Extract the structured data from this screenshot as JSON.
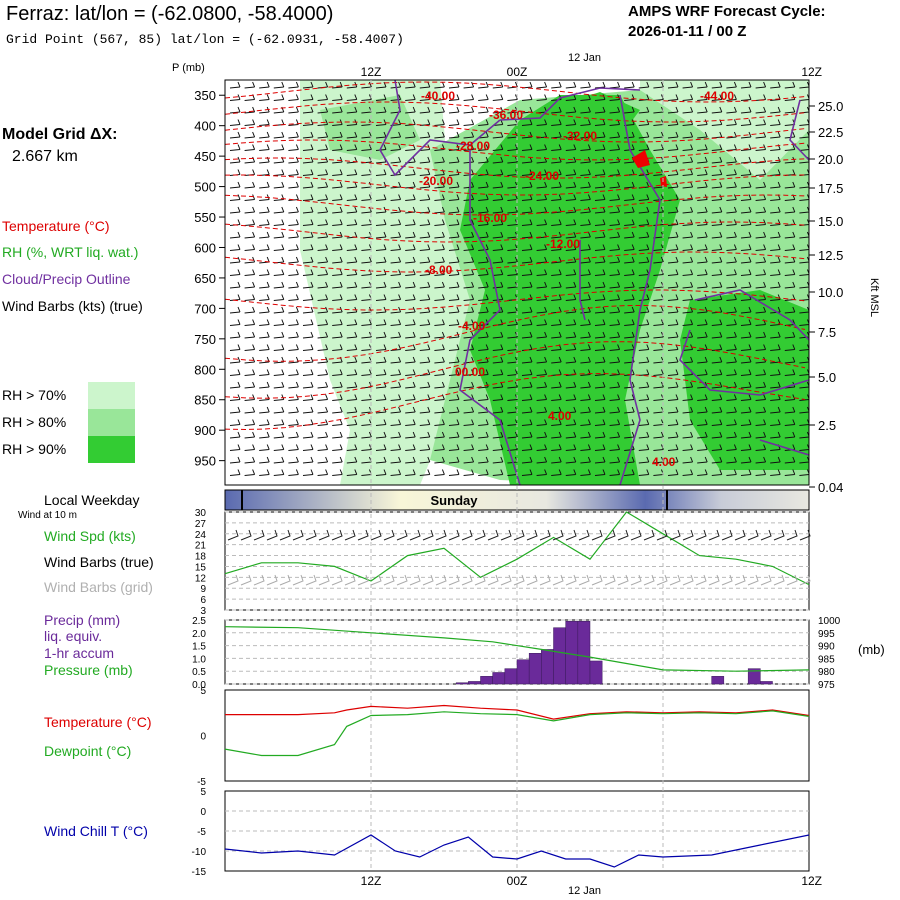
{
  "header": {
    "title": "Ferraz:  lat/lon = (-62.0800, -58.4000)",
    "gridpoint": "Grid Point (567, 85) lat/lon = (-62.0931, -58.4007)",
    "cycle_label": "AMPS WRF Forecast Cycle:",
    "cycle_value": "2026-01-11 / 00  Z"
  },
  "left_legend": {
    "model_grid_label": "Model Grid ΔX:",
    "model_grid_value": "2.667 km",
    "temperature": "Temperature (°C)",
    "rh": "RH (%, WRT liq. wat.)",
    "cloud": "Cloud/Precip Outline",
    "wind": "Wind Barbs (kts) (true)",
    "rh_levels": [
      "RH > 70%",
      "RH > 80%",
      "RH > 90%"
    ],
    "local_weekday": "Local Weekday",
    "wind_10m": "Wind at 10 m",
    "wind_spd": "Wind Spd (kts)",
    "wind_barbs_true": "Wind Barbs (true)",
    "wind_barbs_grid": "Wind Barbs (grid)",
    "precip_lines": [
      "Precip (mm)",
      "liq. equiv.",
      "1-hr accum"
    ],
    "pressure": "Pressure (mb)",
    "temp2": "Temperature (°C)",
    "dewpoint": "Dewpoint (°C)",
    "windchill": "Wind Chill T (°C)"
  },
  "axes": {
    "p_unit": "P (mb)",
    "right_unit": "Kft MSL",
    "mb_unit": "(mb)",
    "date_label": "12 Jan",
    "time_ticks": [
      "12Z",
      "00Z",
      "12Z"
    ],
    "weekday": "Sunday"
  },
  "colors": {
    "temperature": "#dd0000",
    "rh70": "#ccf5cc",
    "rh80": "#99e699",
    "rh90": "#33cc33",
    "cloud": "#7030a0",
    "precip": "#6a2a9a",
    "pressure": "#22aa22",
    "windchill": "#0000aa",
    "band_dark": "#5a6ab0",
    "band_light": "#f8f6d8"
  },
  "chart_data": [
    {
      "type": "heatmap",
      "title": "Time-height cross section",
      "ylabel": "P (mb)",
      "y_ticks_mb": [
        350,
        400,
        450,
        500,
        550,
        600,
        650,
        700,
        750,
        800,
        850,
        900,
        950
      ],
      "y_ticks_kft": [
        "25.0",
        "22.5",
        "20.0",
        "17.5",
        "15.0",
        "12.5",
        "10.0",
        "7.5",
        "5.0",
        "2.5",
        "0.04"
      ],
      "x_ticks": [
        "12Z",
        "00Z",
        "12Z"
      ],
      "temperature_contour_labels": [
        "-40.00",
        "-44.00",
        "-36.00",
        "-32.00",
        "-28.00",
        "-24.00",
        "-20.00",
        "-16.00",
        "-12.00",
        "-8.00",
        "-4.00",
        "00.00",
        "4.00",
        "4.00"
      ]
    },
    {
      "type": "line",
      "title": "Wind Spd (kts)",
      "ylim": [
        3,
        30
      ],
      "y_ticks": [
        3,
        6,
        9,
        12,
        15,
        18,
        21,
        24,
        27,
        30
      ],
      "x_hours": [
        0,
        3,
        6,
        9,
        12,
        15,
        18,
        21,
        24,
        27,
        30,
        33,
        36,
        39,
        42,
        45,
        48
      ],
      "values": [
        13,
        16,
        16,
        15,
        11,
        18,
        20,
        12,
        17,
        23,
        17,
        30,
        24,
        18,
        17,
        15,
        10
      ]
    },
    {
      "type": "bar",
      "title": "Precip (mm) / Pressure (mb)",
      "ylim": [
        0,
        2.5
      ],
      "y_ticks": [
        "0.0",
        "0.5",
        "1.0",
        "1.5",
        "2.0",
        "2.5"
      ],
      "y2_ticks": [
        "975",
        "980",
        "985",
        "990",
        "995",
        "1000"
      ],
      "y2lim": [
        975,
        1000
      ],
      "bar_hours": [
        20,
        21,
        22,
        23,
        24,
        25,
        26,
        27,
        28,
        29,
        30,
        31,
        41,
        44,
        45
      ],
      "precip": [
        0.05,
        0.1,
        0.3,
        0.45,
        0.6,
        0.95,
        1.2,
        1.35,
        2.2,
        2.45,
        2.45,
        0.9,
        0.3,
        0.6,
        0.1
      ],
      "pressure_hours": [
        0,
        6,
        12,
        18,
        22,
        26,
        30,
        33,
        36,
        42,
        48
      ],
      "pressure": [
        997.4,
        997,
        995,
        993,
        991.5,
        988.5,
        985.5,
        983,
        980.5,
        980,
        980.5
      ]
    },
    {
      "type": "line",
      "title": "Temperature / Dewpoint (°C)",
      "ylim": [
        -5,
        5
      ],
      "y_ticks": [
        "5",
        "0",
        "-5"
      ],
      "x_hours": [
        0,
        3,
        6,
        9,
        10,
        12,
        15,
        18,
        21,
        24,
        27,
        30,
        33,
        36,
        39,
        42,
        45,
        48
      ],
      "series": [
        {
          "name": "Temperature",
          "values": [
            2.3,
            2.3,
            2.3,
            2.5,
            2.8,
            3.2,
            3.0,
            3.3,
            3.0,
            2.8,
            1.8,
            2.4,
            2.6,
            2.5,
            2.6,
            2.5,
            2.8,
            2.2
          ]
        },
        {
          "name": "Dewpoint",
          "values": [
            -1.5,
            -2.2,
            -2.2,
            -1.0,
            1.0,
            2.2,
            2.3,
            2.6,
            2.4,
            2.3,
            1.6,
            2.3,
            2.5,
            2.4,
            2.5,
            2.4,
            2.7,
            2.1
          ]
        }
      ]
    },
    {
      "type": "line",
      "title": "Wind Chill T (°C)",
      "ylim": [
        -15,
        5
      ],
      "y_ticks": [
        "5",
        "0",
        "-5",
        "-10",
        "-15"
      ],
      "x_hours": [
        0,
        3,
        6,
        9,
        12,
        14,
        16,
        18,
        20,
        22,
        24,
        26,
        28,
        30,
        32,
        34,
        36,
        40,
        44,
        48
      ],
      "values": [
        -9.5,
        -10.5,
        -10,
        -11,
        -6,
        -10,
        -11.5,
        -8.5,
        -6.5,
        -11.5,
        -12,
        -10,
        -12,
        -12,
        -14,
        -11,
        -11.5,
        -11,
        -8.5,
        -6
      ]
    }
  ]
}
